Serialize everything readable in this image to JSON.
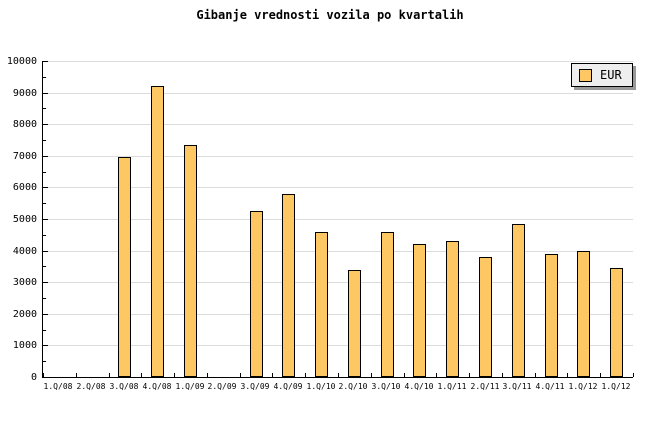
{
  "legend": {
    "label": "EUR"
  },
  "colors": {
    "bar_fill": "#FDC863",
    "bar_border": "#000000",
    "grid": "#DCDCDC",
    "axis": "#000000",
    "legend_bg": "#EEEEEE",
    "legend_shadow": "#999999",
    "background": "#FFFFFF"
  },
  "chart_data": {
    "type": "bar",
    "title": "Gibanje vrednosti vozila po kvartalih",
    "categories": [
      "1.Q/08",
      "2.Q/08",
      "3.Q/08",
      "4.Q/08",
      "1.Q/09",
      "2.Q/09",
      "3.Q/09",
      "4.Q/09",
      "1.Q/10",
      "2.Q/10",
      "3.Q/10",
      "4.Q/10",
      "1.Q/11",
      "2.Q/11",
      "3.Q/11",
      "4.Q/11",
      "1.Q/12",
      "1.Q/12"
    ],
    "series": [
      {
        "name": "EUR",
        "values": [
          null,
          null,
          6950,
          9200,
          7350,
          null,
          5250,
          5800,
          4600,
          3400,
          4600,
          4200,
          4300,
          3800,
          4850,
          3900,
          4000,
          3450
        ]
      }
    ],
    "xlabel": "",
    "ylabel": "",
    "ylim": [
      0,
      10000
    ],
    "y_major_step": 1000,
    "y_minor_step": 500,
    "y_tick_labels": [
      "0",
      "1000",
      "2000",
      "3000",
      "4000",
      "5000",
      "6000",
      "7000",
      "8000",
      "9000",
      "10000"
    ],
    "grid": "horizontal-major",
    "legend_position": "top-right",
    "missing_bars_note": "no bars drawn for null values (1.Q/08, 2.Q/08, 2.Q/09)"
  }
}
